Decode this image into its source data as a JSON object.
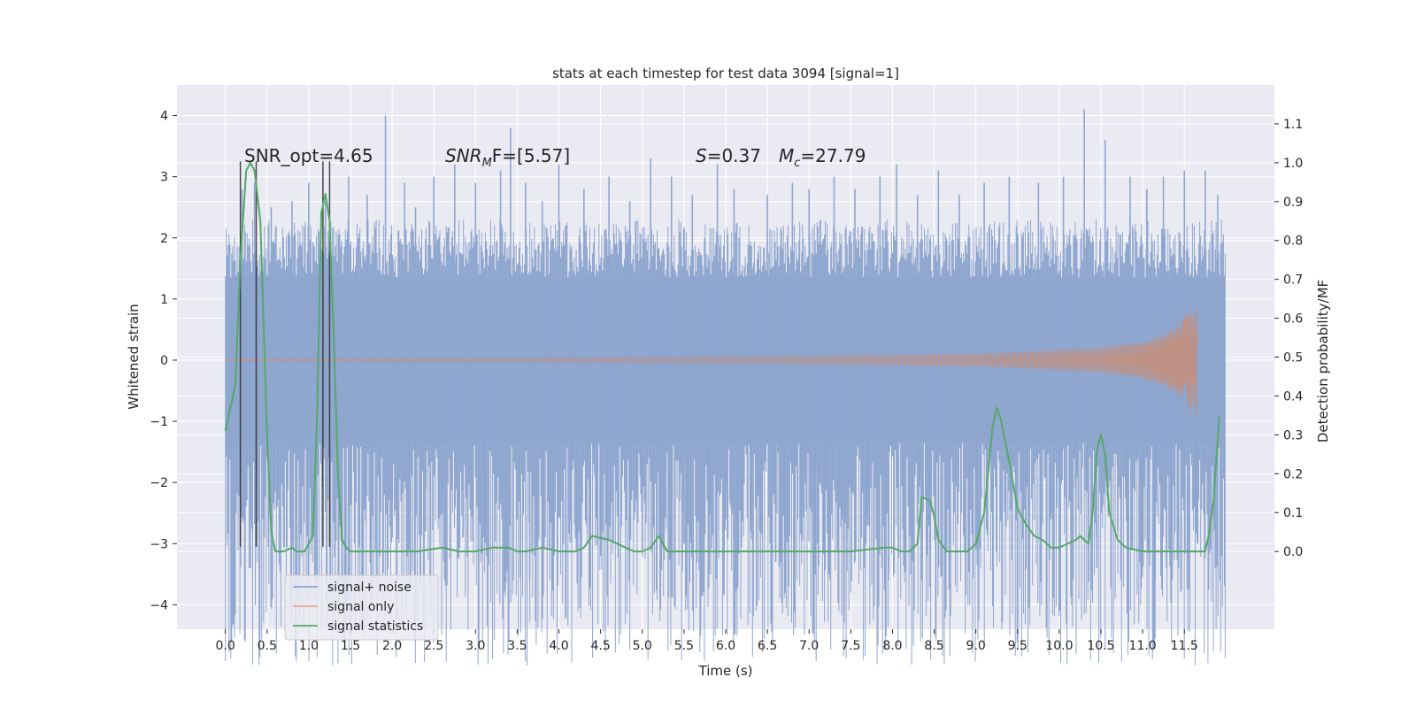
{
  "chart_data": {
    "type": "line",
    "title": "stats at each timestep for test data 3094 [signal=1]",
    "xlabel": "Time (s)",
    "ylabel": "Whitened strain",
    "ylabel_right": "Detection probability/MF",
    "xlim": [
      -0.58,
      12.58
    ],
    "ylim": [
      -4.4,
      4.5
    ],
    "ylim_right": [
      -0.2,
      1.2
    ],
    "x_ticks": [
      0.0,
      0.5,
      1.0,
      1.5,
      2.0,
      2.5,
      3.0,
      3.5,
      4.0,
      4.5,
      5.0,
      5.5,
      6.0,
      6.5,
      7.0,
      7.5,
      8.0,
      8.5,
      9.0,
      9.5,
      10.0,
      10.5,
      11.0,
      11.5
    ],
    "x_tick_labels": [
      "0.0",
      "0.5",
      "1.0",
      "1.5",
      "2.0",
      "2.5",
      "3.0",
      "3.5",
      "4.0",
      "4.5",
      "5.0",
      "5.5",
      "6.0",
      "6.5",
      "7.0",
      "7.5",
      "8.0",
      "8.5",
      "9.0",
      "9.5",
      "10.0",
      "10.5",
      "11.0",
      "11.5"
    ],
    "y_ticks": [
      -4,
      -3,
      -2,
      -1,
      0,
      1,
      2,
      3,
      4
    ],
    "y_tick_labels": [
      "−4",
      "−3",
      "−2",
      "−1",
      "0",
      "1",
      "2",
      "3",
      "4"
    ],
    "y_right_ticks": [
      0.0,
      0.1,
      0.2,
      0.3,
      0.4,
      0.5,
      0.6,
      0.7,
      0.8,
      0.9,
      1.0,
      1.1
    ],
    "y_right_tick_labels": [
      "0.0",
      "0.1",
      "0.2",
      "0.3",
      "0.4",
      "0.5",
      "0.6",
      "0.7",
      "0.8",
      "0.9",
      "1.0",
      "1.1"
    ],
    "grid": true,
    "legend_position": "lower-left",
    "annotations": {
      "snr_opt": "SNR_opt=4.65",
      "snr_mf_main": "SNR",
      "snr_mf_sub": "M",
      "snr_mf_tail": "F=[5.57]",
      "s_main": "S",
      "s_tail": "=0.37",
      "mc_main": "M",
      "mc_sub": "c",
      "mc_tail": "=27.79"
    },
    "colors": {
      "signal_noise": "#8fa6cf",
      "signal_only": "#dd8452",
      "statistics": "#55a868",
      "vline": "#2b2b2b",
      "background": "#eaeaf2",
      "grid": "#ffffff"
    },
    "series": [
      {
        "name": "signal+ noise",
        "axis": "left",
        "style": "dense noise band",
        "x_range": [
          0.0,
          11.99
        ],
        "core_band": [
          -1.35,
          1.35
        ],
        "outer_band": [
          -2.0,
          2.0
        ],
        "spikes": [
          [
            0.05,
            1.9
          ],
          [
            0.07,
            -1.9
          ],
          [
            0.2,
            2.8
          ],
          [
            0.22,
            -2.6
          ],
          [
            0.3,
            -3.4
          ],
          [
            0.35,
            2.9
          ],
          [
            0.45,
            -2.6
          ],
          [
            0.55,
            2.5
          ],
          [
            0.62,
            -2.4
          ],
          [
            0.8,
            2.6
          ],
          [
            0.85,
            -2.5
          ],
          [
            1.0,
            2.9
          ],
          [
            1.05,
            -2.8
          ],
          [
            1.2,
            2.6
          ],
          [
            1.4,
            -2.5
          ],
          [
            1.48,
            3.0
          ],
          [
            1.55,
            -3.0
          ],
          [
            1.7,
            2.7
          ],
          [
            1.85,
            -3.2
          ],
          [
            1.92,
            4.0
          ],
          [
            2.0,
            -2.9
          ],
          [
            2.15,
            2.9
          ],
          [
            2.2,
            -3.1
          ],
          [
            2.28,
            2.5
          ],
          [
            2.4,
            -2.8
          ],
          [
            2.5,
            3.0
          ],
          [
            2.6,
            -2.5
          ],
          [
            2.75,
            3.2
          ],
          [
            2.85,
            -2.9
          ],
          [
            3.0,
            2.9
          ],
          [
            3.1,
            -2.9
          ],
          [
            3.3,
            3.1
          ],
          [
            3.42,
            3.8
          ],
          [
            3.45,
            -2.7
          ],
          [
            3.6,
            2.9
          ],
          [
            3.65,
            -3.6
          ],
          [
            3.8,
            2.6
          ],
          [
            3.9,
            -2.6
          ],
          [
            4.0,
            3.2
          ],
          [
            4.15,
            -3.0
          ],
          [
            4.3,
            2.8
          ],
          [
            4.5,
            -3.2
          ],
          [
            4.6,
            3.0
          ],
          [
            4.75,
            -2.5
          ],
          [
            4.85,
            2.6
          ],
          [
            5.0,
            -3.1
          ],
          [
            5.1,
            3.3
          ],
          [
            5.2,
            -2.9
          ],
          [
            5.35,
            3.0
          ],
          [
            5.5,
            -3.0
          ],
          [
            5.6,
            2.7
          ],
          [
            5.8,
            -3.5
          ],
          [
            5.9,
            3.2
          ],
          [
            6.0,
            -2.6
          ],
          [
            6.1,
            2.8
          ],
          [
            6.3,
            -2.8
          ],
          [
            6.5,
            2.7
          ],
          [
            6.6,
            -3.3
          ],
          [
            6.8,
            2.9
          ],
          [
            6.9,
            -2.5
          ],
          [
            7.0,
            2.8
          ],
          [
            7.1,
            -3.0
          ],
          [
            7.3,
            3.0
          ],
          [
            7.4,
            -2.6
          ],
          [
            7.55,
            2.8
          ],
          [
            7.7,
            -2.7
          ],
          [
            7.85,
            3.0
          ],
          [
            7.95,
            -3.6
          ],
          [
            8.05,
            3.2
          ],
          [
            8.15,
            -2.7
          ],
          [
            8.3,
            2.7
          ],
          [
            8.45,
            -3.0
          ],
          [
            8.55,
            3.1
          ],
          [
            8.65,
            -2.6
          ],
          [
            8.8,
            2.7
          ],
          [
            9.0,
            -3.1
          ],
          [
            9.1,
            2.9
          ],
          [
            9.25,
            -3.1
          ],
          [
            9.4,
            3.0
          ],
          [
            9.6,
            -2.8
          ],
          [
            9.75,
            2.9
          ],
          [
            9.9,
            -2.6
          ],
          [
            10.05,
            3.0
          ],
          [
            10.2,
            -2.9
          ],
          [
            10.3,
            4.1
          ],
          [
            10.45,
            -3.4
          ],
          [
            10.55,
            3.6
          ],
          [
            10.7,
            -2.8
          ],
          [
            10.85,
            3.0
          ],
          [
            11.0,
            -3.1
          ],
          [
            11.05,
            2.8
          ],
          [
            11.15,
            -3.6
          ],
          [
            11.25,
            3.0
          ],
          [
            11.35,
            -2.9
          ],
          [
            11.5,
            3.1
          ],
          [
            11.65,
            -2.7
          ],
          [
            11.75,
            3.1
          ],
          [
            11.85,
            -2.8
          ],
          [
            11.9,
            2.7
          ]
        ]
      },
      {
        "name": "signal only",
        "axis": "left",
        "style": "chirp",
        "x_range": [
          0.0,
          11.65
        ],
        "envelope": [
          [
            0.0,
            0.02
          ],
          [
            6.0,
            0.05
          ],
          [
            9.0,
            0.1
          ],
          [
            10.5,
            0.2
          ],
          [
            11.0,
            0.3
          ],
          [
            11.3,
            0.45
          ],
          [
            11.45,
            0.6
          ],
          [
            11.55,
            0.8
          ],
          [
            11.62,
            1.0
          ],
          [
            11.65,
            1.0
          ]
        ]
      },
      {
        "name": "signal statistics",
        "axis": "right",
        "style": "line",
        "x": [
          0.0,
          0.12,
          0.18,
          0.25,
          0.3,
          0.35,
          0.42,
          0.5,
          0.55,
          0.6,
          0.7,
          0.8,
          0.85,
          0.95,
          1.05,
          1.1,
          1.15,
          1.2,
          1.25,
          1.3,
          1.35,
          1.4,
          1.45,
          1.5,
          1.6,
          1.8,
          2.0,
          2.3,
          2.6,
          2.8,
          3.0,
          3.2,
          3.4,
          3.5,
          3.6,
          3.8,
          4.0,
          4.2,
          4.3,
          4.4,
          4.6,
          4.8,
          4.9,
          5.0,
          5.1,
          5.2,
          5.3,
          5.5,
          6.0,
          6.5,
          7.0,
          7.5,
          7.9,
          8.0,
          8.1,
          8.2,
          8.3,
          8.35,
          8.45,
          8.5,
          8.55,
          8.65,
          8.8,
          8.9,
          9.0,
          9.1,
          9.2,
          9.25,
          9.3,
          9.4,
          9.5,
          9.6,
          9.7,
          9.8,
          9.9,
          10.0,
          10.1,
          10.2,
          10.25,
          10.3,
          10.35,
          10.4,
          10.45,
          10.5,
          10.55,
          10.6,
          10.7,
          10.8,
          11.0,
          11.2,
          11.4,
          11.6,
          11.75,
          11.8,
          11.85,
          11.92
        ],
        "values": [
          0.31,
          0.43,
          0.75,
          0.98,
          1.0,
          0.98,
          0.85,
          0.3,
          0.05,
          0.0,
          0.0,
          0.01,
          0.0,
          0.0,
          0.04,
          0.35,
          0.87,
          0.92,
          0.85,
          0.55,
          0.2,
          0.03,
          0.01,
          0.0,
          0.0,
          0.0,
          0.0,
          0.0,
          0.01,
          0.0,
          0.0,
          0.01,
          0.01,
          0.0,
          0.0,
          0.01,
          0.0,
          0.0,
          0.01,
          0.04,
          0.03,
          0.01,
          0.0,
          0.0,
          0.01,
          0.04,
          0.0,
          0.0,
          0.0,
          0.0,
          0.0,
          0.0,
          0.01,
          0.01,
          0.0,
          0.0,
          0.02,
          0.14,
          0.13,
          0.09,
          0.03,
          0.0,
          0.0,
          0.0,
          0.02,
          0.1,
          0.32,
          0.37,
          0.34,
          0.23,
          0.11,
          0.07,
          0.04,
          0.03,
          0.01,
          0.01,
          0.02,
          0.03,
          0.04,
          0.03,
          0.02,
          0.1,
          0.26,
          0.3,
          0.25,
          0.1,
          0.03,
          0.01,
          0.0,
          0.0,
          0.0,
          0.0,
          0.0,
          0.05,
          0.13,
          0.35
        ]
      }
    ],
    "vertical_markers": [
      {
        "x": 0.18,
        "ymin": -3.05,
        "ymax": 3.25
      },
      {
        "x": 0.37,
        "ymin": -3.05,
        "ymax": 3.25
      },
      {
        "x": 1.17,
        "ymin": -3.05,
        "ymax": 3.25
      },
      {
        "x": 1.25,
        "ymin": -3.05,
        "ymax": 3.25
      }
    ]
  }
}
